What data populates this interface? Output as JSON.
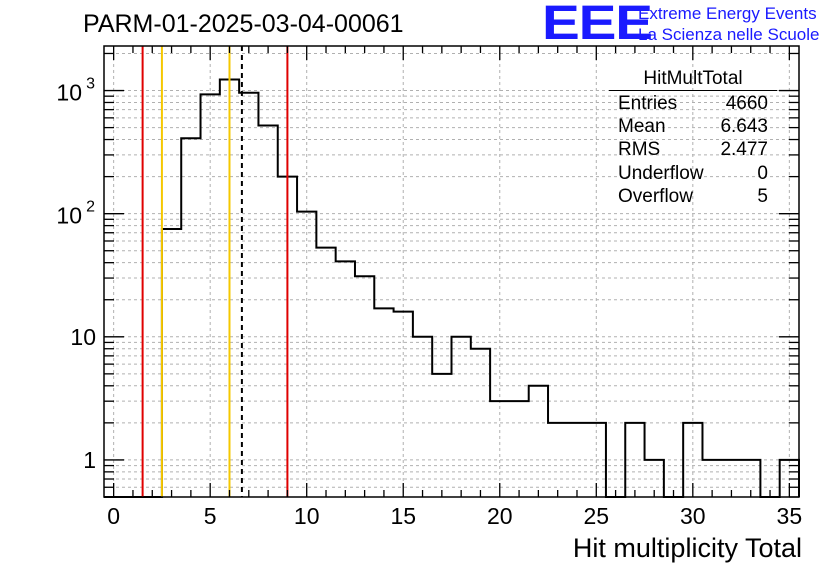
{
  "header": {
    "run_title": "PARM-01-2025-03-04-00061",
    "logo_text": "EEE",
    "logo_line1": "Extreme Energy Events",
    "logo_line2": "La Scienza nelle Scuole"
  },
  "stats_box": {
    "title": "HitMultTotal",
    "rows": [
      {
        "label": "Entries",
        "value": "4660"
      },
      {
        "label": "Mean",
        "value": "6.643"
      },
      {
        "label": "RMS",
        "value": "2.477"
      },
      {
        "label": "Underflow",
        "value": "0"
      },
      {
        "label": "Overflow",
        "value": "5"
      }
    ]
  },
  "chart_data": {
    "type": "histogram",
    "title": "PARM-01-2025-03-04-00061",
    "xlabel": "Hit multiplicity Total",
    "ylabel": "",
    "xlim": [
      -0.5,
      35.5
    ],
    "ylim_log": [
      0.5,
      2300
    ],
    "yscale": "log",
    "grid": true,
    "bin_width": 1,
    "bins": [
      {
        "x": 0,
        "count": 0
      },
      {
        "x": 1,
        "count": 0
      },
      {
        "x": 2,
        "count": 0
      },
      {
        "x": 3,
        "count": 75
      },
      {
        "x": 4,
        "count": 410
      },
      {
        "x": 5,
        "count": 930
      },
      {
        "x": 6,
        "count": 1230
      },
      {
        "x": 7,
        "count": 960
      },
      {
        "x": 8,
        "count": 520
      },
      {
        "x": 9,
        "count": 200
      },
      {
        "x": 10,
        "count": 104
      },
      {
        "x": 11,
        "count": 53
      },
      {
        "x": 12,
        "count": 41
      },
      {
        "x": 13,
        "count": 31
      },
      {
        "x": 14,
        "count": 17
      },
      {
        "x": 15,
        "count": 16
      },
      {
        "x": 16,
        "count": 10
      },
      {
        "x": 17,
        "count": 5
      },
      {
        "x": 18,
        "count": 10
      },
      {
        "x": 19,
        "count": 8
      },
      {
        "x": 20,
        "count": 3
      },
      {
        "x": 21,
        "count": 3
      },
      {
        "x": 22,
        "count": 4
      },
      {
        "x": 23,
        "count": 2
      },
      {
        "x": 24,
        "count": 2
      },
      {
        "x": 25,
        "count": 2
      },
      {
        "x": 26,
        "count": 0
      },
      {
        "x": 27,
        "count": 2
      },
      {
        "x": 28,
        "count": 1
      },
      {
        "x": 29,
        "count": 0
      },
      {
        "x": 30,
        "count": 2
      },
      {
        "x": 31,
        "count": 1
      },
      {
        "x": 32,
        "count": 1
      },
      {
        "x": 33,
        "count": 1
      },
      {
        "x": 34,
        "count": 0
      },
      {
        "x": 35,
        "count": 1
      }
    ],
    "vertical_lines": [
      {
        "name": "lower-red-line",
        "x": 1.5,
        "color": "#e00000",
        "style": "solid"
      },
      {
        "name": "lower-yellow-line",
        "x": 2.5,
        "color": "#f5c800",
        "style": "solid"
      },
      {
        "name": "upper-yellow-line",
        "x": 6.0,
        "color": "#f5c800",
        "style": "solid"
      },
      {
        "name": "mean-dashed-line",
        "x": 6.643,
        "color": "#000000",
        "style": "dashed"
      },
      {
        "name": "upper-red-line",
        "x": 9.0,
        "color": "#e00000",
        "style": "solid"
      }
    ],
    "x_major_ticks": [
      0,
      5,
      10,
      15,
      20,
      25,
      30,
      35
    ],
    "x_tick_labels": [
      "0",
      "5",
      "10",
      "15",
      "20",
      "25",
      "30",
      "35"
    ],
    "y_major_ticks": [
      {
        "value": 1,
        "label": "1"
      },
      {
        "value": 10,
        "label": "10"
      },
      {
        "value": 100,
        "label_base": "10",
        "label_exp": "2"
      },
      {
        "value": 1000,
        "label_base": "10",
        "label_exp": "3"
      }
    ]
  }
}
